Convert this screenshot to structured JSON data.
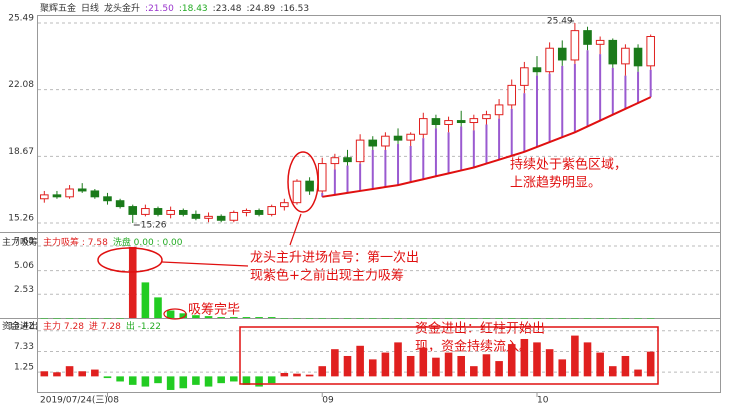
{
  "chart_data": [
    {
      "type": "candlestick",
      "title_parts": [
        {
          "text": "聚辉五金",
          "color": "#333333"
        },
        {
          "text": "日线",
          "color": "#333333"
        },
        {
          "text": "龙头金升",
          "color": "#333333"
        },
        {
          "text": ":21.50",
          "color": "#9933cc"
        },
        {
          "text": ":18.43",
          "color": "#22aa22"
        },
        {
          "text": ":23.48",
          "color": "#333333"
        },
        {
          "text": ":24.89",
          "color": "#333333"
        },
        {
          "text": ":16.53",
          "color": "#333333"
        }
      ],
      "categories": [
        "2019/07/24(三)",
        null,
        null,
        null,
        null,
        "08",
        null,
        null,
        null,
        null,
        null,
        null,
        null,
        null,
        null,
        null,
        null,
        null,
        null,
        null,
        null,
        null,
        "09",
        null,
        null,
        null,
        null,
        null,
        null,
        null,
        null,
        null,
        null,
        null,
        null,
        null,
        null,
        null,
        null,
        "10",
        null,
        null,
        null,
        null,
        null,
        null,
        null,
        null,
        null
      ],
      "open": [
        16.5,
        16.7,
        16.6,
        17.0,
        16.9,
        16.6,
        16.4,
        16.1,
        15.7,
        16.0,
        15.7,
        15.9,
        15.7,
        15.5,
        15.6,
        15.4,
        15.8,
        15.9,
        15.7,
        16.1,
        16.3,
        17.4,
        16.9,
        18.3,
        18.6,
        18.4,
        19.5,
        19.2,
        19.7,
        19.5,
        19.8,
        20.6,
        20.3,
        20.5,
        20.4,
        20.6,
        20.8,
        21.3,
        22.3,
        23.2,
        23.0,
        24.2,
        23.6,
        25.1,
        24.4,
        24.6,
        23.4,
        24.2,
        23.3
      ],
      "high": [
        16.9,
        16.9,
        17.2,
        17.3,
        17.0,
        16.8,
        16.5,
        16.2,
        16.2,
        16.1,
        16.1,
        16.0,
        15.9,
        15.8,
        15.7,
        15.9,
        16.0,
        16.0,
        16.2,
        16.5,
        17.5,
        17.6,
        18.6,
        18.8,
        19.0,
        19.8,
        19.7,
        19.9,
        20.1,
        19.9,
        20.9,
        20.8,
        20.7,
        21.0,
        20.8,
        21.0,
        21.6,
        22.6,
        23.5,
        23.8,
        24.5,
        24.6,
        25.49,
        25.3,
        24.8,
        24.7,
        24.4,
        24.4,
        24.9
      ],
      "low": [
        16.3,
        16.5,
        16.5,
        16.8,
        16.5,
        16.2,
        16.0,
        15.26,
        15.6,
        15.6,
        15.5,
        15.6,
        15.4,
        15.3,
        15.3,
        15.3,
        15.6,
        15.6,
        15.6,
        15.9,
        16.2,
        16.7,
        16.8,
        18.0,
        18.2,
        18.3,
        19.0,
        19.0,
        19.3,
        19.2,
        19.6,
        20.1,
        19.9,
        20.2,
        20.0,
        20.3,
        20.6,
        21.1,
        21.9,
        22.8,
        22.9,
        23.3,
        23.4,
        24.1,
        23.9,
        23.2,
        22.8,
        23.0,
        23.1
      ],
      "close": [
        16.7,
        16.6,
        17.0,
        16.9,
        16.6,
        16.4,
        16.1,
        15.7,
        16.0,
        15.7,
        15.9,
        15.7,
        15.5,
        15.6,
        15.4,
        15.8,
        15.9,
        15.7,
        16.1,
        16.3,
        17.4,
        16.9,
        18.3,
        18.6,
        18.4,
        19.5,
        19.2,
        19.7,
        19.5,
        19.8,
        20.6,
        20.3,
        20.5,
        20.4,
        20.6,
        20.8,
        21.3,
        22.3,
        23.2,
        23.0,
        24.2,
        23.6,
        25.1,
        24.4,
        24.6,
        23.4,
        24.2,
        23.3,
        24.8
      ],
      "lower": [
        null,
        null,
        null,
        null,
        null,
        null,
        null,
        null,
        null,
        null,
        null,
        null,
        null,
        null,
        null,
        null,
        null,
        null,
        null,
        null,
        null,
        null,
        16.6,
        16.7,
        16.8,
        16.9,
        17.0,
        17.1,
        17.2,
        17.35,
        17.5,
        17.65,
        17.8,
        17.95,
        18.1,
        18.3,
        18.5,
        18.7,
        18.9,
        19.15,
        19.4,
        19.65,
        19.9,
        20.2,
        20.5,
        20.8,
        21.1,
        21.4,
        21.7
      ],
      "up_color": "#e0201f",
      "down_color": "#1a7a1a",
      "band_color": "#9a5ad0",
      "line_color": "#e01010",
      "ylim": [
        14.8,
        25.9
      ],
      "yticks": [
        15.26,
        18.67,
        22.08,
        25.49
      ],
      "grid": true,
      "annotations": [
        {
          "lines": [
            "持续处于紫色区域，",
            "上涨趋势明显。"
          ]
        },
        {
          "lines": [
            "龙头主升进场信号：第一次出",
            "现紫色+之前出现主力吸筹"
          ]
        },
        {
          "lines": [
            "吸筹完毕"
          ]
        },
        {
          "lines": [
            "资金进出：红柱开始出",
            "现，资金持续流入。"
          ]
        }
      ]
    },
    {
      "type": "bar",
      "title_parts": [
        {
          "text": "主力吸筹",
          "color": "#333333"
        },
        {
          "text": "主力吸筹 : 7.58",
          "color": "#e0201f"
        },
        {
          "text": "洗盘 0.00 : 0.00",
          "color": "#22aa22"
        }
      ],
      "values": [
        0,
        0,
        0,
        0,
        0,
        0,
        0,
        7.58,
        3.8,
        2.2,
        0.8,
        0.5,
        0.3,
        0.2,
        0.1,
        0.1,
        0.1,
        0.1,
        0.1,
        0,
        0,
        0,
        0,
        0,
        0,
        0,
        0,
        0,
        0,
        0,
        0,
        0,
        0,
        0,
        0,
        0,
        0,
        0,
        0,
        0,
        0,
        0,
        0,
        0,
        0,
        0,
        0,
        0,
        0
      ],
      "colors": [
        "#22cc22",
        "#22cc22",
        "#22cc22",
        "#22cc22",
        "#22cc22",
        "#22cc22",
        "#22cc22",
        "#e0201f",
        "#22cc22",
        "#22cc22",
        "#22cc22",
        "#22cc22",
        "#22cc22",
        "#22cc22",
        "#22cc22",
        "#22cc22",
        "#22cc22",
        "#22cc22",
        "#22cc22",
        "#22cc22",
        "#22cc22",
        "#22cc22",
        "#22cc22",
        "#22cc22",
        "#22cc22",
        "#22cc22",
        "#22cc22",
        "#22cc22",
        "#22cc22",
        "#22cc22",
        "#22cc22",
        "#22cc22",
        "#22cc22",
        "#22cc22",
        "#22cc22",
        "#22cc22",
        "#22cc22",
        "#22cc22",
        "#22cc22",
        "#22cc22",
        "#22cc22",
        "#22cc22",
        "#22cc22",
        "#22cc22",
        "#22cc22",
        "#22cc22",
        "#22cc22",
        "#22cc22",
        "#22cc22"
      ],
      "ylim": [
        0,
        8.75
      ],
      "yticks": [
        2.53,
        5.06,
        7.68
      ],
      "grid": true
    },
    {
      "type": "bar",
      "title_parts": [
        {
          "text": "资金进出",
          "color": "#333333"
        },
        {
          "text": "主力 7.28",
          "color": "#e0201f"
        },
        {
          "text": "进 7.28",
          "color": "#e0201f"
        },
        {
          "text": "出 -1.22",
          "color": "#22aa22"
        }
      ],
      "values": [
        1.5,
        1.2,
        3.0,
        1.5,
        2.0,
        -0.5,
        -1.5,
        -2.5,
        -3.0,
        -2.0,
        -4.0,
        -3.5,
        -2.5,
        -3.0,
        -2.0,
        -1.5,
        -2.5,
        -3.0,
        -2.0,
        1.0,
        0.8,
        0.5,
        3.0,
        8.0,
        6.0,
        9.0,
        5.0,
        7.0,
        10.0,
        6.0,
        8.5,
        5.5,
        7.0,
        6.0,
        3.0,
        6.5,
        4.5,
        9.5,
        11.0,
        10.0,
        8.0,
        5.0,
        12.0,
        10.0,
        7.0,
        3.0,
        6.0,
        2.0,
        7.28
      ],
      "pos_color": "#e0201f",
      "neg_color": "#22cc22",
      "ylim": [
        -4.6,
        16
      ],
      "yticks": [
        1.25,
        7.33,
        13.42
      ],
      "grid": true
    }
  ]
}
